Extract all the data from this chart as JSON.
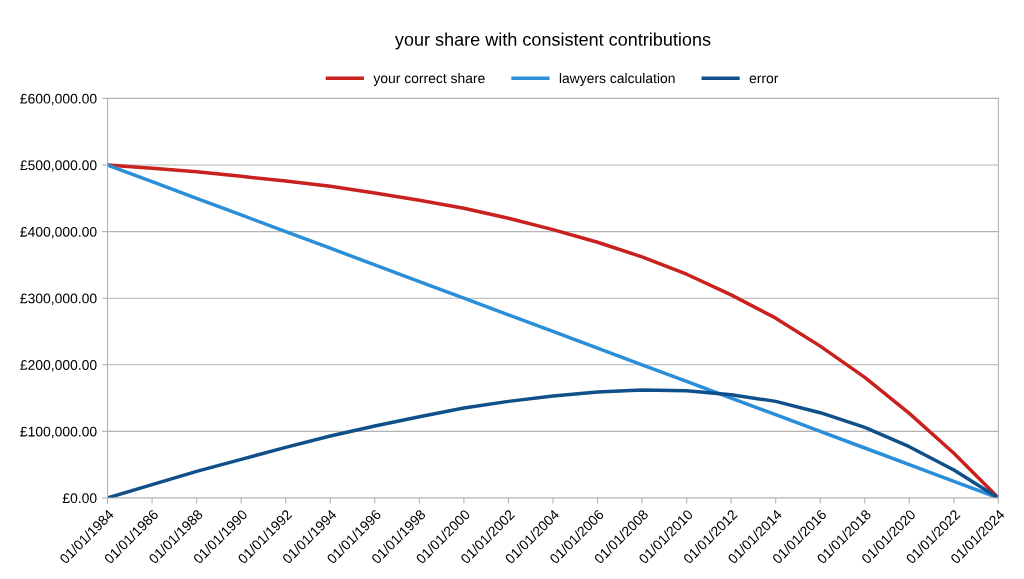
{
  "chart_data": {
    "type": "line",
    "title": "your share with consistent contributions",
    "x": [
      "1984-01-01",
      "1986-01-01",
      "1988-01-01",
      "1990-01-01",
      "1992-01-01",
      "1994-01-01",
      "1996-01-01",
      "1998-01-01",
      "2000-01-01",
      "2002-01-01",
      "2004-01-01",
      "2006-01-01",
      "2008-01-01",
      "2010-01-01",
      "2012-01-01",
      "2014-01-01",
      "2016-01-01",
      "2018-01-01",
      "2020-01-01",
      "2022-01-01",
      "2024-01-01"
    ],
    "series": [
      {
        "name": "your correct share",
        "color": "#c9211e",
        "values": [
          500000,
          495000,
          490000,
          483000,
          476000,
          468000,
          458000,
          447000,
          435000,
          420000,
          403000,
          384000,
          362000,
          336000,
          305000,
          270000,
          228000,
          181000,
          127000,
          67000,
          0
        ]
      },
      {
        "name": "lawyers calculation",
        "color": "#2a8fd8",
        "values": [
          500000,
          475000,
          450000,
          425000,
          400000,
          375000,
          350000,
          325000,
          300000,
          275000,
          250000,
          225000,
          200000,
          175000,
          150000,
          125000,
          100000,
          75000,
          50000,
          25000,
          0
        ]
      },
      {
        "name": "error",
        "color": "#10508a",
        "values": [
          0,
          20000,
          40000,
          58000,
          76000,
          93000,
          108000,
          122000,
          135000,
          145000,
          153000,
          159000,
          162000,
          161000,
          155000,
          145000,
          128000,
          106000,
          77000,
          42000,
          0
        ]
      }
    ],
    "xlim": [
      "1984-01-01",
      "2024-01-01"
    ],
    "xticks": [
      {
        "value": "1984-01-01",
        "label": "01/01/1984"
      },
      {
        "value": "1986-01-01",
        "label": "01/01/1986"
      },
      {
        "value": "1988-01-01",
        "label": "01/01/1988"
      },
      {
        "value": "1990-01-01",
        "label": "01/01/1990"
      },
      {
        "value": "1992-01-01",
        "label": "01/01/1992"
      },
      {
        "value": "1994-01-01",
        "label": "01/01/1994"
      },
      {
        "value": "1996-01-01",
        "label": "01/01/1996"
      },
      {
        "value": "1998-01-01",
        "label": "01/01/1998"
      },
      {
        "value": "2000-01-01",
        "label": "01/01/2000"
      },
      {
        "value": "2002-01-01",
        "label": "01/01/2002"
      },
      {
        "value": "2004-01-01",
        "label": "01/01/2004"
      },
      {
        "value": "2006-01-01",
        "label": "01/01/2006"
      },
      {
        "value": "2008-01-01",
        "label": "01/01/2008"
      },
      {
        "value": "2010-01-01",
        "label": "01/01/2010"
      },
      {
        "value": "2012-01-01",
        "label": "01/01/2012"
      },
      {
        "value": "2014-01-01",
        "label": "01/01/2014"
      },
      {
        "value": "2016-01-01",
        "label": "01/01/2016"
      },
      {
        "value": "2018-01-01",
        "label": "01/01/2018"
      },
      {
        "value": "2020-01-01",
        "label": "01/01/2020"
      },
      {
        "value": "2022-01-01",
        "label": "01/01/2022"
      },
      {
        "value": "2024-01-01",
        "label": "01/01/2024"
      }
    ],
    "ylim": [
      0,
      600000
    ],
    "yticks": [
      {
        "value": 0,
        "label": "£0.00"
      },
      {
        "value": 100000,
        "label": "£100,000.00"
      },
      {
        "value": 200000,
        "label": "£200,000.00"
      },
      {
        "value": 300000,
        "label": "£300,000.00"
      },
      {
        "value": 400000,
        "label": "£400,000.00"
      },
      {
        "value": 500000,
        "label": "£500,000.00"
      },
      {
        "value": 600000,
        "label": "£600,000.00"
      }
    ],
    "grid": "y",
    "legend": "top",
    "marker": "none",
    "line_style": "solid"
  }
}
